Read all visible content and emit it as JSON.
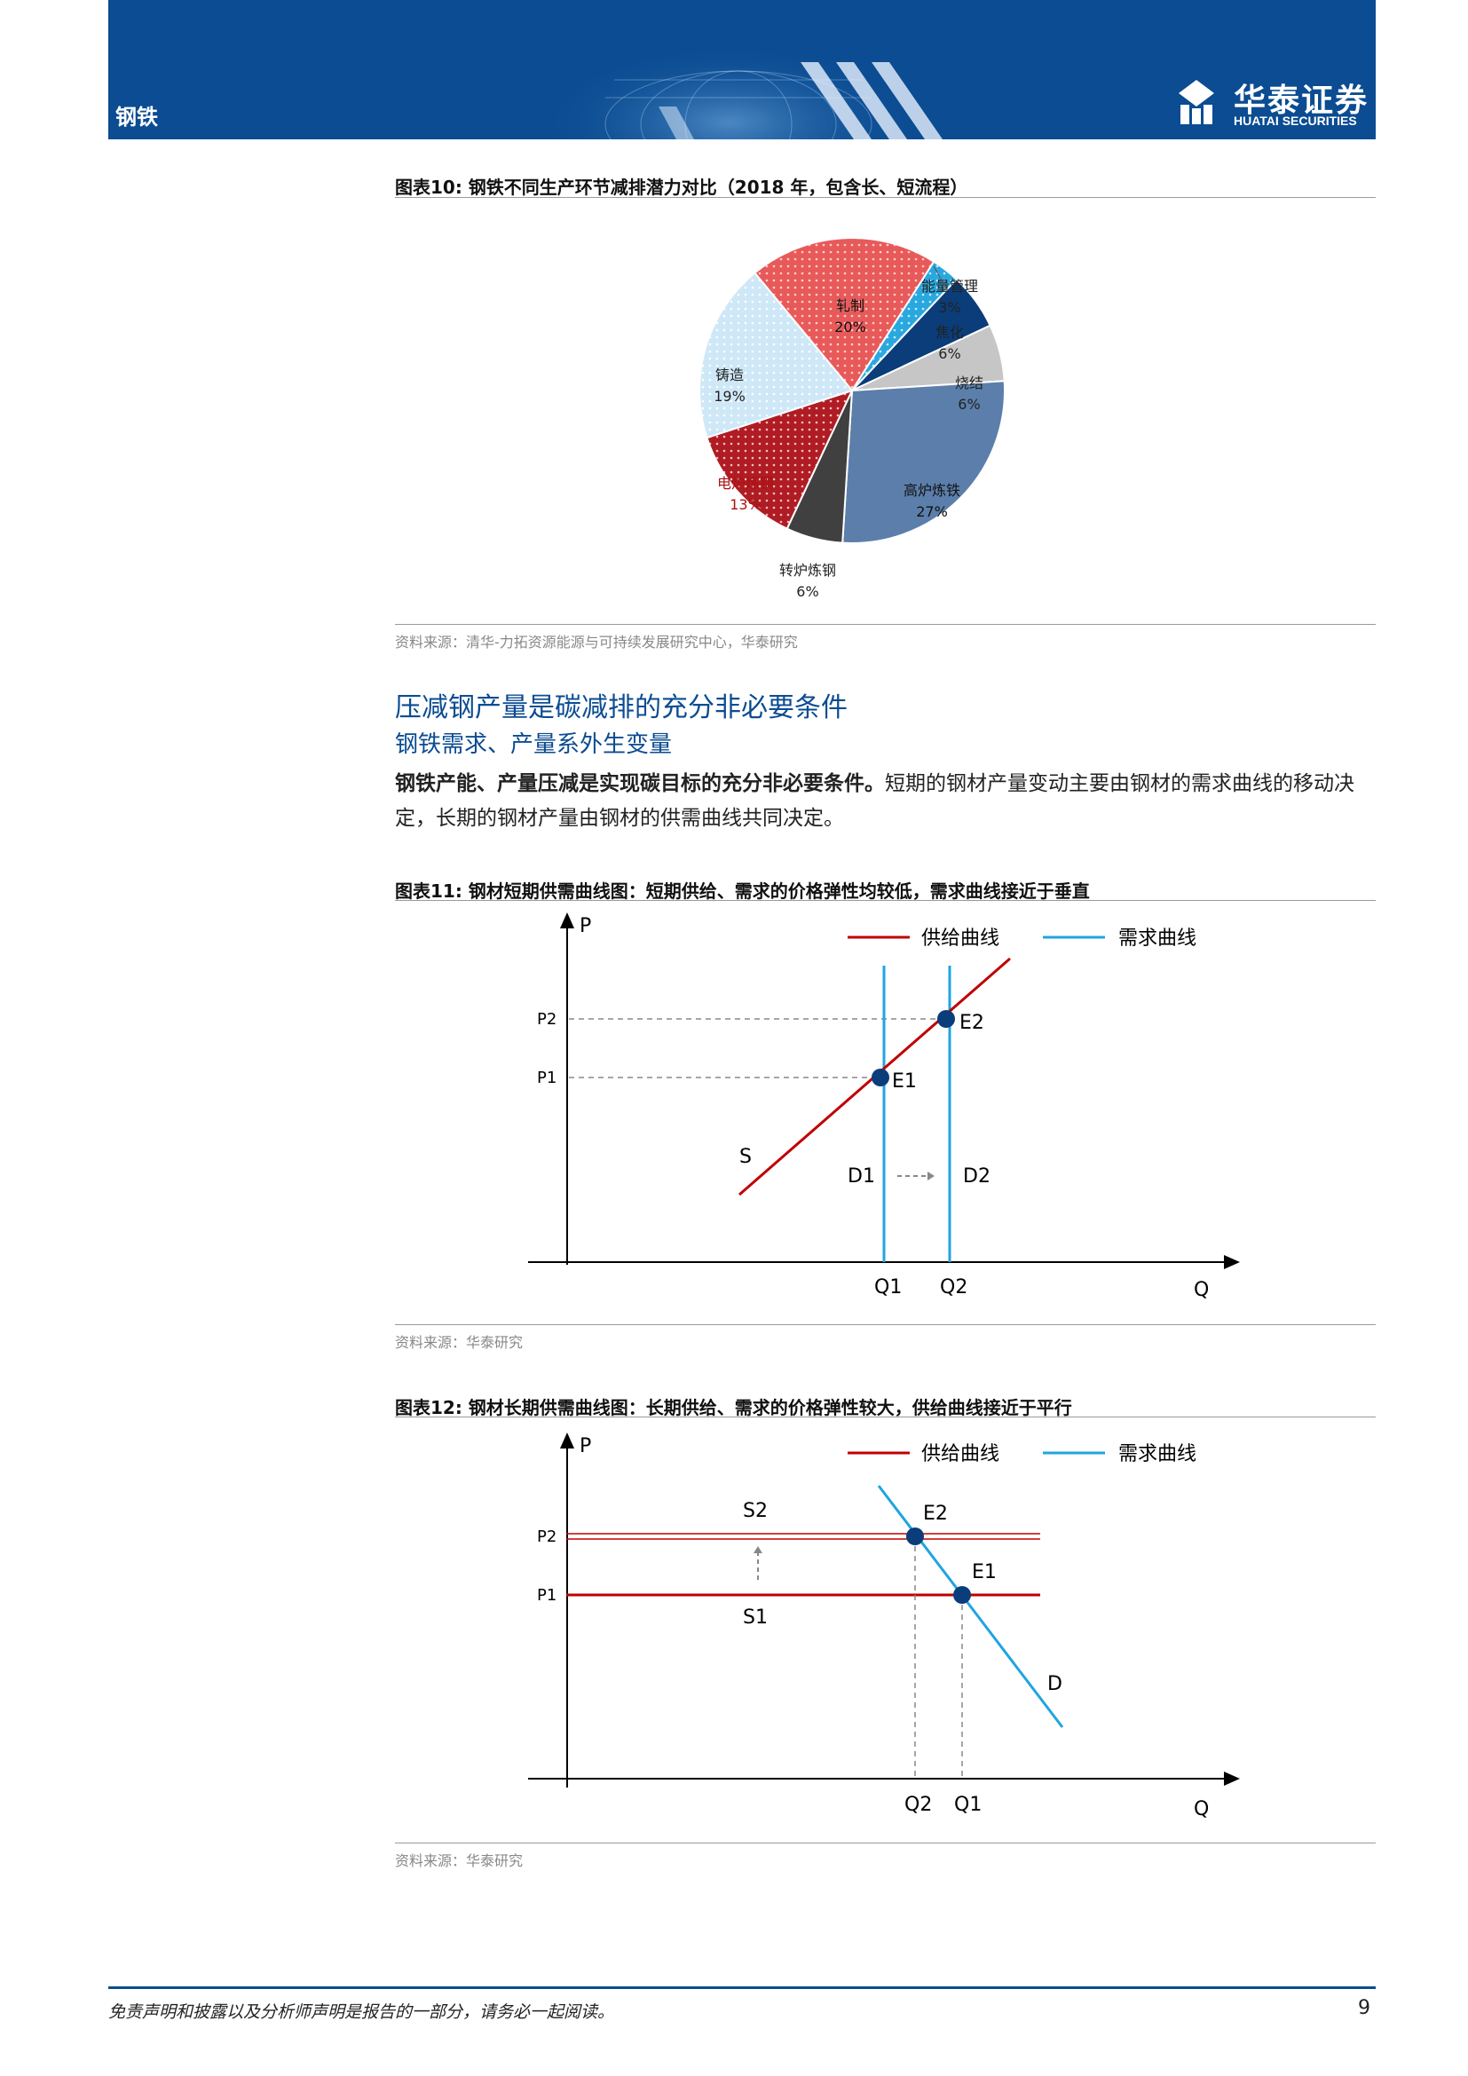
{
  "header": {
    "sector": "钢铁",
    "brand_cn": "华泰证券",
    "brand_en": "HUATAI SECURITIES"
  },
  "figure10": {
    "title": "图表10:   钢铁不同生产环节减排潜力对比（2018 年，包含长、短流程）",
    "source": "资料来源：清华-力拓资源能源与可持续发展研究中心，华泰研究"
  },
  "chart_data": [
    {
      "type": "pie",
      "slices": [
        {
          "label": "轧制",
          "value": 20,
          "pct": "20%",
          "color": "#e85a5a"
        },
        {
          "label": "能量管理",
          "value": 3,
          "pct": "3%",
          "color": "#29a8e0"
        },
        {
          "label": "焦化",
          "value": 6,
          "pct": "6%",
          "color": "#0b3d7a"
        },
        {
          "label": "烧结",
          "value": 6,
          "pct": "6%",
          "color": "#c6c6c6"
        },
        {
          "label": "高炉炼铁",
          "value": 27,
          "pct": "27%",
          "color": "#5b7faa"
        },
        {
          "label": "转炉炼钢",
          "value": 6,
          "pct": "6%",
          "color": "#404040"
        },
        {
          "label": "电炉炼钢",
          "value": 13,
          "pct": "13%",
          "color": "#b01c24"
        },
        {
          "label": "铸造",
          "value": 19,
          "pct": "19%",
          "color": "#cfe8f8"
        }
      ]
    },
    {
      "type": "line",
      "title": "钢材短期供需曲线图",
      "legend": [
        "供给曲线",
        "需求曲线"
      ],
      "axis_x": "Q",
      "axis_y": "P",
      "price_labels": [
        "P2",
        "P1"
      ],
      "quantity_labels": [
        "Q1",
        "Q2"
      ],
      "points": [
        "E2",
        "E1"
      ],
      "curve_labels": [
        "S",
        "D1",
        "D2"
      ]
    },
    {
      "type": "line",
      "title": "钢材长期供需曲线图",
      "legend": [
        "供给曲线",
        "需求曲线"
      ],
      "axis_x": "Q",
      "axis_y": "P",
      "price_labels": [
        "P2",
        "P1"
      ],
      "quantity_labels": [
        "Q2",
        "Q1"
      ],
      "points": [
        "E2",
        "E1"
      ],
      "curve_labels": [
        "S2",
        "S1",
        "D"
      ]
    }
  ],
  "section": {
    "heading": "压减钢产量是碳减排的充分非必要条件",
    "subheading": "钢铁需求、产量系外生变量",
    "para_bold": "钢铁产能、产量压减是实现碳目标的充分非必要条件。",
    "para_rest": "短期的钢材产量变动主要由钢材的需求曲线的移动决定，长期的钢材产量由钢材的供需曲线共同决定。"
  },
  "figure11": {
    "title": "图表11:   钢材短期供需曲线图：短期供给、需求的价格弹性均较低，需求曲线接近于垂直",
    "source": "资料来源：华泰研究"
  },
  "figure12": {
    "title": "图表12:   钢材长期供需曲线图：长期供给、需求的价格弹性较大，供给曲线接近于平行",
    "source": "资料来源：华泰研究"
  },
  "footer": {
    "disclaimer": "免责声明和披露以及分析师声明是报告的一部分，请务必一起阅读。",
    "page": "9"
  }
}
